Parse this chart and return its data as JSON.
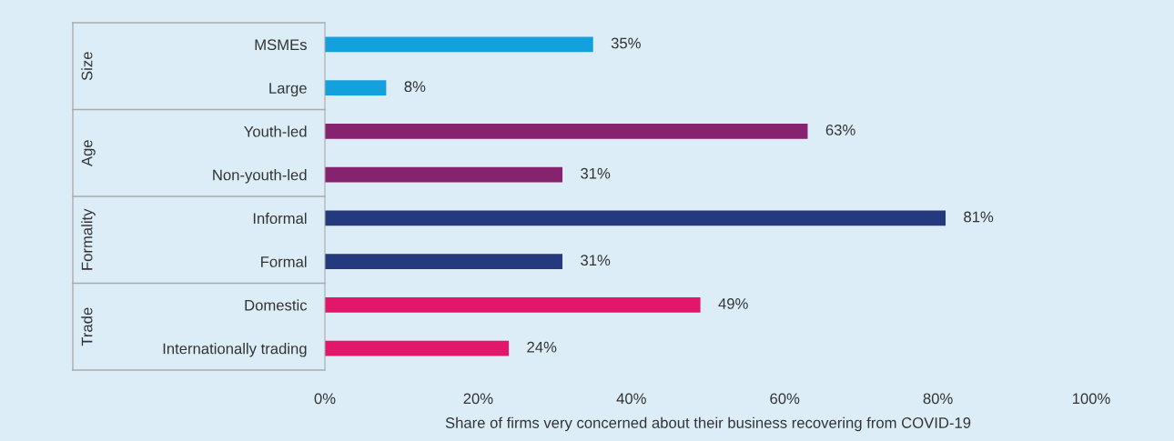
{
  "chart_data": {
    "type": "bar",
    "orientation": "horizontal",
    "categories": [
      "MSMEs",
      "Large",
      "Youth-led",
      "Non-youth-led",
      "Informal",
      "Formal",
      "Domestic",
      "Internationally trading"
    ],
    "values": [
      35,
      8,
      63,
      31,
      81,
      31,
      49,
      24
    ],
    "colors": [
      "#14a0dc",
      "#14a0dc",
      "#87226f",
      "#87226f",
      "#253a7e",
      "#253a7e",
      "#e3176a",
      "#e3176a"
    ],
    "value_labels": [
      "35%",
      "8%",
      "63%",
      "31%",
      "81%",
      "31%",
      "49%",
      "24%"
    ],
    "xlim": [
      0,
      100
    ],
    "xticks": [
      {
        "value": 0,
        "label": "0%"
      },
      {
        "value": 20,
        "label": "20%"
      },
      {
        "value": 40,
        "label": "40%"
      },
      {
        "value": 60,
        "label": "60%"
      },
      {
        "value": 80,
        "label": "80%"
      },
      {
        "value": 100,
        "label": "100%"
      }
    ],
    "xlabel": "Share of firms very concerned about their business recovering from COVID-19",
    "annotations": [
      "Size",
      "Age",
      "Formality",
      "Trade"
    ],
    "grid": false,
    "legend": false
  }
}
